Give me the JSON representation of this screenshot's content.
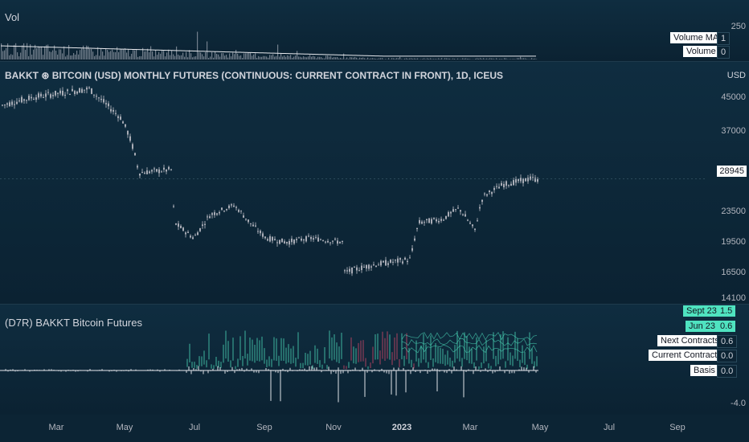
{
  "volume_pane": {
    "title": "Vol",
    "axis_label": "250",
    "legend": [
      {
        "name": "Volume MA",
        "value": "1"
      },
      {
        "name": "Volume",
        "value": "0"
      }
    ]
  },
  "main_pane": {
    "title": "BAKKT ⊛ BITCOIN (USD) MONTHLY FUTURES (CONTINUOUS: CURRENT CONTRACT IN FRONT), 1D, ICEUS",
    "currency": "USD",
    "price_levels": [
      "45000",
      "37000",
      "23500",
      "19500",
      "16500",
      "14100"
    ],
    "last_price": "28945"
  },
  "indicator_pane": {
    "title": "(D7R) BAKKT Bitcoin Futures",
    "axis_label": "-4.0",
    "legend": [
      {
        "name": "Sept 23",
        "value": "1.5",
        "style": "cyan"
      },
      {
        "name": "Jun 23",
        "value": "0.6",
        "style": "cyan"
      },
      {
        "name": "Next Contracts",
        "value": "0.6",
        "style": "white"
      },
      {
        "name": "Current Contracts",
        "value": "0.0",
        "style": "white"
      },
      {
        "name": "Basis",
        "value": "0.0",
        "style": "white"
      }
    ]
  },
  "time_axis": {
    "labels": [
      "Mar",
      "May",
      "Jul",
      "Sep",
      "Nov",
      "2023",
      "Mar",
      "May",
      "Jul",
      "Sep"
    ]
  },
  "chart_data": {
    "type": "candlestick",
    "x_range": [
      "2022-02",
      "2023-09"
    ],
    "y_range_approx": [
      14100,
      50000
    ],
    "price_path_approx": [
      {
        "date": "2022-02",
        "price": 43000
      },
      {
        "date": "2022-03",
        "price": 45000
      },
      {
        "date": "2022-03-end",
        "price": 47000
      },
      {
        "date": "2022-05",
        "price": 38000
      },
      {
        "date": "2022-05-mid",
        "price": 30000
      },
      {
        "date": "2022-06-mid",
        "price": 21000
      },
      {
        "date": "2022-08",
        "price": 24000
      },
      {
        "date": "2022-09",
        "price": 20000
      },
      {
        "date": "2022-10",
        "price": 19500
      },
      {
        "date": "2022-11",
        "price": 16500
      },
      {
        "date": "2022-12",
        "price": 17000
      },
      {
        "date": "2023-01",
        "price": 22000
      },
      {
        "date": "2023-02",
        "price": 24000
      },
      {
        "date": "2023-03",
        "price": 21000
      },
      {
        "date": "2023-03-end",
        "price": 28000
      },
      {
        "date": "2023-04",
        "price": 29000
      }
    ]
  },
  "colors": {
    "background": "#0c2434",
    "candle": "#b2b5be",
    "accent_cyan": "#4fe3c0",
    "negative": "#e04a6b"
  }
}
